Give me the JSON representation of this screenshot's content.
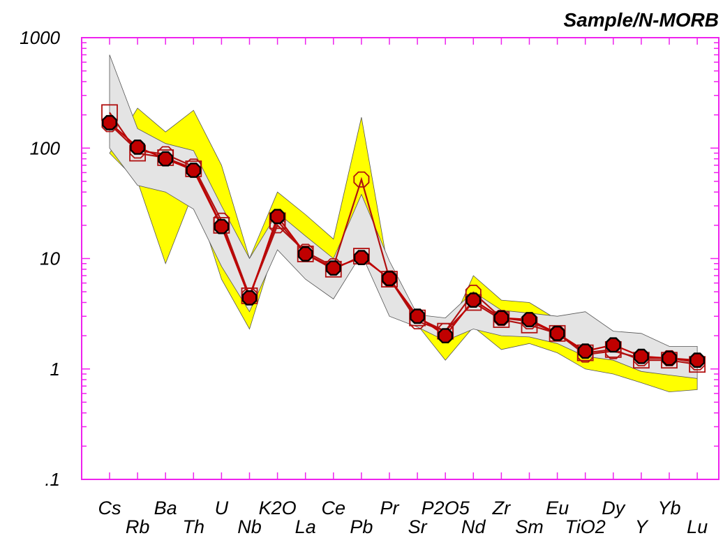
{
  "chart_data": {
    "type": "line",
    "title": "Sample/N-MORB",
    "xlabel": "",
    "ylabel": "",
    "yscale": "log",
    "ylim": [
      0.1,
      1000
    ],
    "yticks": [
      "1000",
      "100",
      "10",
      "1",
      ".1"
    ],
    "grid": false,
    "categories": [
      "Cs",
      "Rb",
      "Ba",
      "Th",
      "U",
      "Nb",
      "K2O",
      "La",
      "Ce",
      "Pb",
      "Pr",
      "Sr",
      "P2O5",
      "Nd",
      "Zr",
      "Sm",
      "Eu",
      "TiO2",
      "Dy",
      "Y",
      "Yb",
      "Lu"
    ],
    "bands": [
      {
        "color": "#ffff00",
        "upper": [
          null,
          230,
          140,
          220,
          70,
          10,
          40,
          25,
          15,
          190,
          7,
          3,
          1.9,
          7,
          4.2,
          4,
          2.8,
          1.8,
          1.5,
          1.2,
          1.1,
          1.05
        ],
        "lower": [
          90,
          50,
          9,
          40,
          6.5,
          2.3,
          15,
          9,
          5.5,
          20,
          3.2,
          2.5,
          1.2,
          2.4,
          1.5,
          1.7,
          1.4,
          1.0,
          0.9,
          0.75,
          0.62,
          0.65
        ]
      },
      {
        "color": "#e4e4e4",
        "upper": [
          700,
          150,
          110,
          95,
          30,
          10,
          26,
          16,
          10,
          38,
          9.5,
          3.1,
          2.9,
          5,
          3.4,
          3.2,
          3.0,
          3.3,
          2.2,
          2.1,
          1.6,
          1.6
        ],
        "lower": [
          100,
          46,
          40,
          28,
          8.5,
          3.3,
          12,
          6.5,
          4.3,
          11,
          3.0,
          2.4,
          1.8,
          2.3,
          2.0,
          1.95,
          1.7,
          1.3,
          1.2,
          0.95,
          0.88,
          0.82
        ]
      }
    ],
    "series": [
      {
        "marker": "open-square",
        "color": "#b01010",
        "values": [
          210,
          90,
          82,
          65,
          20,
          4.6,
          22,
          11,
          8,
          10.5,
          6.5,
          2.9,
          2.2,
          4.0,
          2.8,
          2.5,
          2.1,
          1.4,
          1.5,
          1.2,
          1.2,
          1.1
        ]
      },
      {
        "marker": "open-octagon",
        "color": "#b01010",
        "values": [
          165,
          95,
          88,
          68,
          22,
          4.6,
          20,
          11.5,
          8.5,
          52,
          6.6,
          2.7,
          2.2,
          4.9,
          2.9,
          2.7,
          2.1,
          1.35,
          1.45,
          1.25,
          1.25,
          1.15
        ]
      },
      {
        "marker": "filled-octagon",
        "color": "#c00000",
        "edge": "#000000",
        "values": [
          170,
          102,
          80,
          63,
          19.5,
          4.4,
          24,
          11,
          8.2,
          10.2,
          6.6,
          3.0,
          2.0,
          4.2,
          2.9,
          2.8,
          2.1,
          1.45,
          1.65,
          1.3,
          1.25,
          1.2
        ]
      }
    ]
  }
}
